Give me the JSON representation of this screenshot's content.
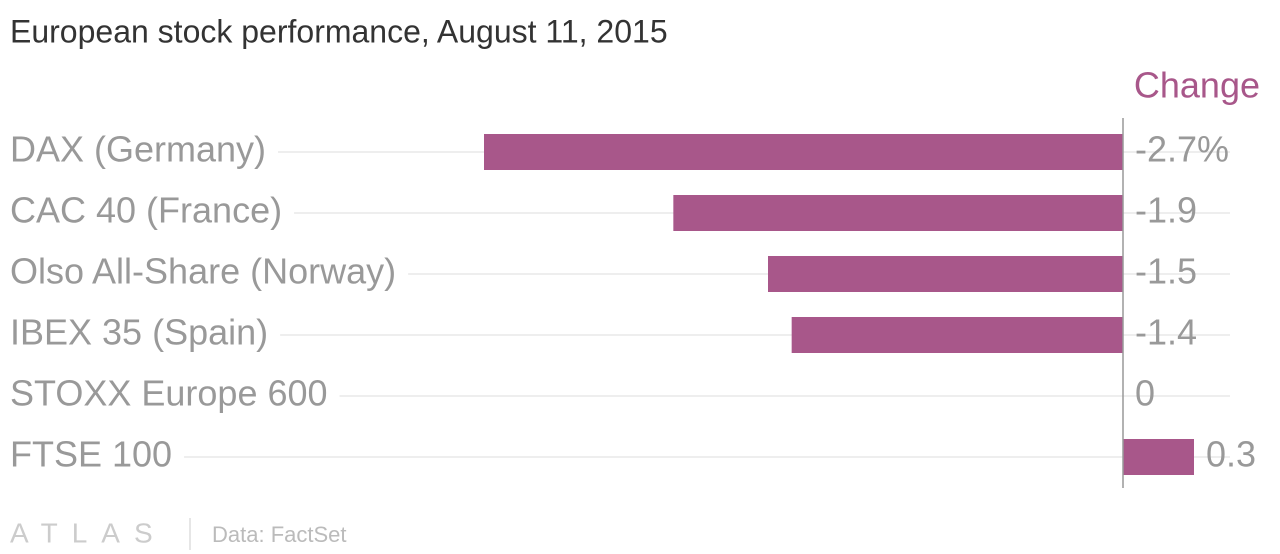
{
  "chart_data": {
    "type": "bar",
    "orientation": "horizontal",
    "title": "European stock performance, August 11, 2015",
    "categories": [
      "DAX (Germany)",
      "CAC 40 (France)",
      "Olso All-Share (Norway)",
      "IBEX 35 (Spain)",
      "STOXX Europe 600",
      "FTSE 100"
    ],
    "series": [
      {
        "name": "Change",
        "color": "#a8578a",
        "values": [
          -2.7,
          -1.9,
          -1.5,
          -1.4,
          0,
          0.3
        ],
        "value_labels": [
          "-2.7%",
          "-1.9",
          "-1.5",
          "-1.4",
          "0",
          "0.3"
        ]
      }
    ],
    "xlim": [
      -2.7,
      0.3
    ],
    "grid": true,
    "logo": "ATLAS",
    "source": "Data: FactSet"
  }
}
